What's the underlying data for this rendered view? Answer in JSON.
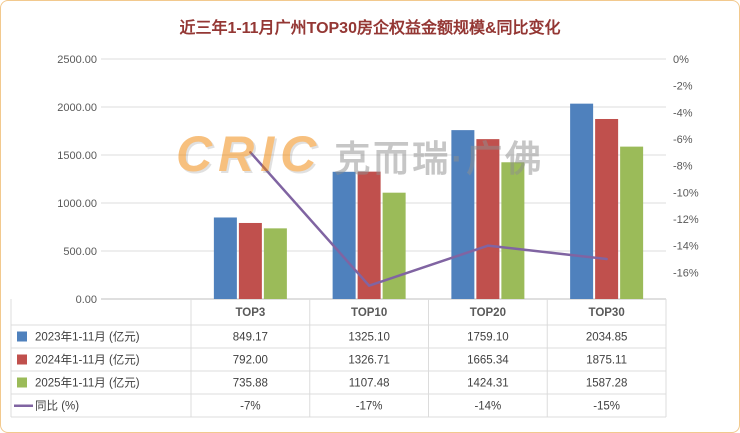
{
  "title": "近三年1-11月广州TOP30房企权益金额规模&同比变化",
  "watermark": {
    "latin": "CRIC",
    "cjk": "克而瑞·广佛"
  },
  "colors": {
    "title": "#943734",
    "border": "#f2c98e",
    "grid": "#dcdcdc",
    "axis_line": "#bfbfbf",
    "axis_text": "#595959",
    "table_text": "#404040",
    "category_text": "#595959",
    "watermark_orange": "#f08300",
    "watermark_gray": "#8f8f8f",
    "series_blue": "#4f81bd",
    "series_red": "#c0504d",
    "series_green": "#9bbb59",
    "series_purple": "#8064a2"
  },
  "chart_data": {
    "type": "bar+line",
    "title": "近三年1-11月广州TOP30房企权益金额规模&同比变化",
    "categories": [
      "TOP3",
      "TOP10",
      "TOP20",
      "TOP30"
    ],
    "series": [
      {
        "name": "2023年1-11月 (亿元)",
        "type": "bar",
        "color": "#4f81bd",
        "values": [
          849.17,
          1325.1,
          1759.1,
          2034.85
        ],
        "display": [
          "849.17",
          "1325.10",
          "1759.10",
          "2034.85"
        ]
      },
      {
        "name": "2024年1-11月 (亿元)",
        "type": "bar",
        "color": "#c0504d",
        "values": [
          792.0,
          1326.71,
          1665.34,
          1875.11
        ],
        "display": [
          "792.00",
          "1326.71",
          "1665.34",
          "1875.11"
        ]
      },
      {
        "name": "2025年1-11月 (亿元)",
        "type": "bar",
        "color": "#9bbb59",
        "values": [
          735.88,
          1107.48,
          1424.31,
          1587.28
        ],
        "display": [
          "735.88",
          "1107.48",
          "1424.31",
          "1587.28"
        ]
      },
      {
        "name": "同比 (%)",
        "type": "line",
        "color": "#8064a2",
        "values": [
          -7,
          -17,
          -14,
          -15
        ],
        "display": [
          "-7%",
          "-17%",
          "-14%",
          "-15%"
        ]
      }
    ],
    "left_axis": {
      "min": 0,
      "max": 2500,
      "step": 500,
      "labels": [
        "2500.00",
        "2000.00",
        "1500.00",
        "1000.00",
        "500.00",
        "0.00"
      ]
    },
    "right_axis": {
      "min": -18,
      "max": 0,
      "step": -2,
      "labels": [
        "0%",
        "-2%",
        "-4%",
        "-6%",
        "-8%",
        "-10%",
        "-12%",
        "-14%",
        "-16%"
      ]
    },
    "grid": true,
    "legend_position": "data-table"
  }
}
